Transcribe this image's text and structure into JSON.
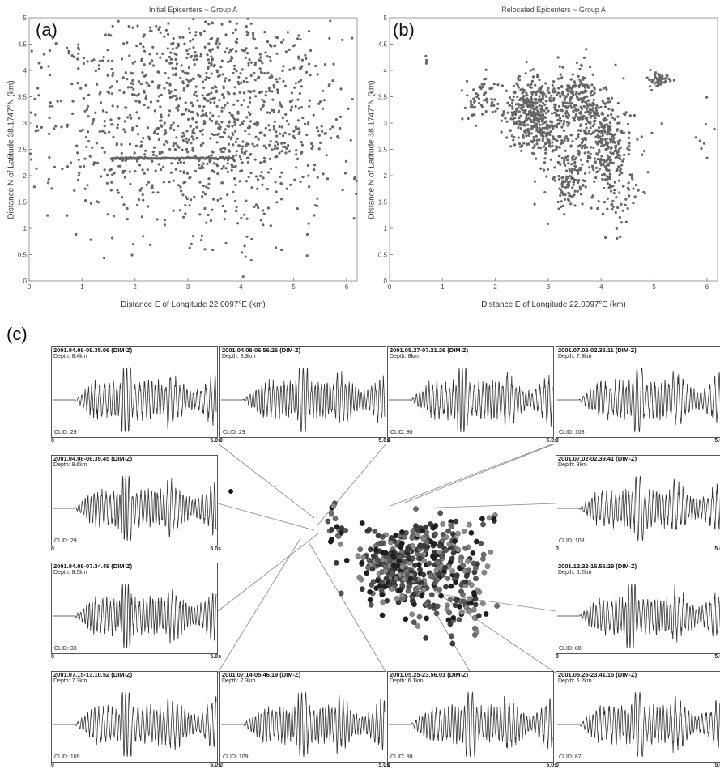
{
  "panels": {
    "a": {
      "letter": "(a)"
    },
    "b": {
      "letter": "(b)"
    },
    "c": {
      "letter": "(c)"
    }
  },
  "chart_data": [
    {
      "type": "scatter",
      "title": "Initial Epicenters  ~  Group A",
      "xlabel": "Distance E of Longitude 22.0097°E (km)",
      "ylabel": "Distance N of Latitude 38.1747°N (km)",
      "xlim": [
        0,
        6.2
      ],
      "ylim": [
        0,
        5
      ],
      "xticks": [
        0,
        1,
        2,
        3,
        4,
        5,
        6
      ],
      "yticks": [
        0,
        0.5,
        1,
        1.5,
        2,
        2.5,
        3,
        3.5,
        4,
        4.5,
        5
      ],
      "grid": false,
      "marker_color": "#666666",
      "clusters": [
        {
          "cx": 3.0,
          "cy": 2.9,
          "sx": 1.45,
          "sy": 1.0,
          "n": 900
        },
        {
          "cx": 3.2,
          "cy": 4.3,
          "sx": 1.4,
          "sy": 0.35,
          "n": 180
        },
        {
          "cx": 4.4,
          "cy": 3.1,
          "sx": 0.9,
          "sy": 0.8,
          "n": 200
        }
      ],
      "line_feature": {
        "x_from": 1.55,
        "x_to": 3.85,
        "y": 2.33,
        "n": 130
      }
    },
    {
      "type": "scatter",
      "title": "Relocated Epicenters  ~  Group A",
      "xlabel": "Distance E of Longitude 22.0097°E (km)",
      "ylabel": "Distance N of Latitude 38.1747°N (km)",
      "xlim": [
        0,
        6.2
      ],
      "ylim": [
        0,
        5
      ],
      "xticks": [
        0,
        1,
        2,
        3,
        4,
        5,
        6
      ],
      "yticks": [
        0,
        0.5,
        1,
        1.5,
        2,
        2.5,
        3,
        3.5,
        4,
        4.5,
        5
      ],
      "grid": false,
      "marker_color": "#666666",
      "clusters": [
        {
          "cx": 2.6,
          "cy": 3.3,
          "sx": 0.22,
          "sy": 0.28,
          "n": 260
        },
        {
          "cx": 2.85,
          "cy": 2.85,
          "sx": 0.25,
          "sy": 0.22,
          "n": 150
        },
        {
          "cx": 3.45,
          "cy": 3.45,
          "sx": 0.25,
          "sy": 0.3,
          "n": 200
        },
        {
          "cx": 3.95,
          "cy": 3.0,
          "sx": 0.2,
          "sy": 0.25,
          "n": 120
        },
        {
          "cx": 4.15,
          "cy": 2.4,
          "sx": 0.15,
          "sy": 0.3,
          "n": 120
        },
        {
          "cx": 3.4,
          "cy": 1.9,
          "sx": 0.22,
          "sy": 0.3,
          "n": 120
        },
        {
          "cx": 1.75,
          "cy": 3.45,
          "sx": 0.15,
          "sy": 0.25,
          "n": 60
        },
        {
          "cx": 5.1,
          "cy": 3.82,
          "sx": 0.1,
          "sy": 0.08,
          "n": 50
        },
        {
          "cx": 3.7,
          "cy": 2.6,
          "sx": 0.55,
          "sy": 0.55,
          "n": 160
        },
        {
          "cx": 4.4,
          "cy": 1.6,
          "sx": 0.25,
          "sy": 0.4,
          "n": 50
        },
        {
          "cx": 0.7,
          "cy": 4.2,
          "sx": 0.02,
          "sy": 0.05,
          "n": 3
        },
        {
          "cx": 5.9,
          "cy": 2.6,
          "sx": 0.1,
          "sy": 0.25,
          "n": 8
        }
      ]
    },
    {
      "type": "waveforms",
      "time_start": "0",
      "time_end": "5.0s",
      "traces": [
        {
          "title": "2001.04.08-09.35.06 (DIM-Z)",
          "depth": "Depth: 8.4km",
          "clid": "CLID: 29",
          "seed": 1,
          "peak": 0.45
        },
        {
          "title": "2001.04.08-06.56.26 (DIM-Z)",
          "depth": "Depth: 8.3km",
          "clid": "CLID: 29",
          "seed": 2,
          "peak": 0.5
        },
        {
          "title": "2001.05.27-07.21.26 (DIM-Z)",
          "depth": "Depth: 8km",
          "clid": "CLID: 90",
          "seed": 3,
          "peak": 0.45
        },
        {
          "title": "2001.07.02-02.35.11 (DIM-Z)",
          "depth": "Depth: 7.9km",
          "clid": "CLID: 108",
          "seed": 4,
          "peak": 0.5
        },
        {
          "title": "2001.04.08-08.39.45 (DIM-Z)",
          "depth": "Depth: 8.6km",
          "clid": "CLID: 29",
          "seed": 5,
          "peak": 0.45
        },
        {
          "title": "2001.07.02-02.39.41 (DIM-Z)",
          "depth": "Depth: 8km",
          "clid": "CLID: 108",
          "seed": 6,
          "peak": 0.5
        },
        {
          "title": "2001.04.08-07.34.49 (DIM-Z)",
          "depth": "Depth: 8.5km",
          "clid": "CLID: 33",
          "seed": 7,
          "peak": 0.45
        },
        {
          "title": "2001.12.22-16.55.29 (DIM-Z)",
          "depth": "Depth: 6.2km",
          "clid": "CLID: 80",
          "seed": 8,
          "peak": 0.45
        },
        {
          "title": "2001.07.15-13.10.52 (DIM-Z)",
          "depth": "Depth: 7.3km",
          "clid": "CLID: 109",
          "seed": 9,
          "peak": 0.45
        },
        {
          "title": "2001.07.14-05.46.19 (DIM-Z)",
          "depth": "Depth: 7.3km",
          "clid": "CLID: 109",
          "seed": 10,
          "peak": 0.5
        },
        {
          "title": "2001.05.25-23.56.01 (DIM-Z)",
          "depth": "Depth: 6.1km",
          "clid": "CLID: 88",
          "seed": 11,
          "peak": 0.5
        },
        {
          "title": "2001.05.25-23.41.15 (DIM-Z)",
          "depth": "Depth: 6.2km",
          "clid": "CLID: 87",
          "seed": 12,
          "peak": 0.5
        }
      ],
      "epicenter_map": {
        "colors": [
          "#1e1e1e",
          "#3a3a3a",
          "#555555",
          "#6e6e6e",
          "#8a8a8a"
        ],
        "clusters": [
          {
            "cx": 0.45,
            "cy": 0.45,
            "sx": 0.09,
            "sy": 0.1,
            "n": 170
          },
          {
            "cx": 0.55,
            "cy": 0.55,
            "sx": 0.12,
            "sy": 0.12,
            "n": 140
          },
          {
            "cx": 0.66,
            "cy": 0.35,
            "sx": 0.08,
            "sy": 0.08,
            "n": 70
          },
          {
            "cx": 0.78,
            "cy": 0.5,
            "sx": 0.06,
            "sy": 0.09,
            "n": 60
          },
          {
            "cx": 0.17,
            "cy": 0.25,
            "sx": 0.03,
            "sy": 0.07,
            "n": 20
          },
          {
            "cx": 0.75,
            "cy": 0.75,
            "sx": 0.08,
            "sy": 0.08,
            "n": 40
          },
          {
            "cx": 0.92,
            "cy": 0.2,
            "sx": 0.02,
            "sy": 0.01,
            "n": 6
          }
        ]
      }
    }
  ]
}
